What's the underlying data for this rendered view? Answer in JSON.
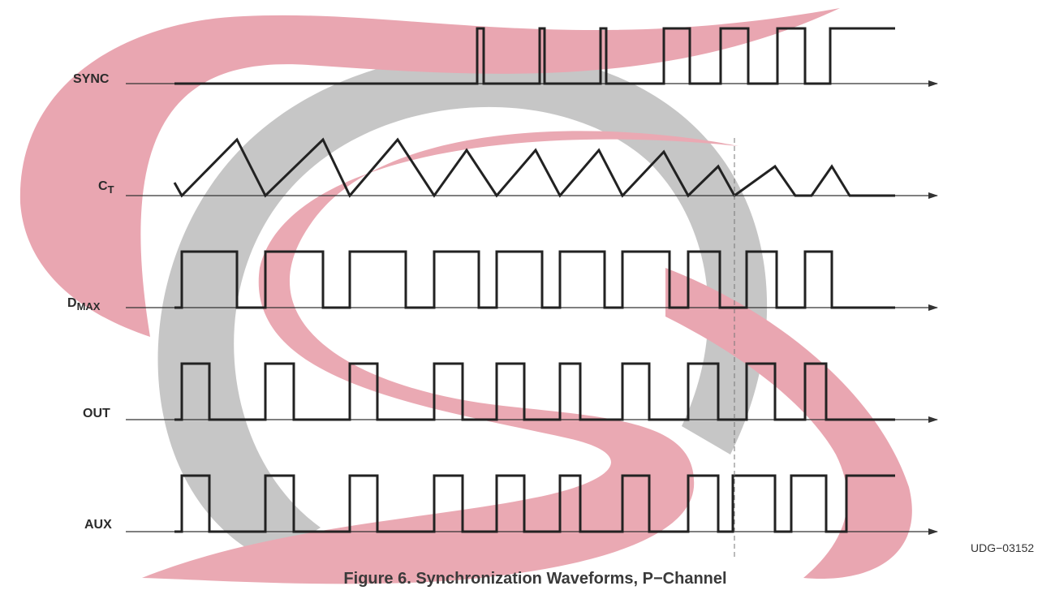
{
  "signals": [
    {
      "id": "sync",
      "label": "SYNC",
      "sub": ""
    },
    {
      "id": "ct",
      "label": "C",
      "sub": "T"
    },
    {
      "id": "dmax",
      "label": "D",
      "sub": "MAX"
    },
    {
      "id": "out",
      "label": "OUT",
      "sub": ""
    },
    {
      "id": "aux",
      "label": "AUX",
      "sub": ""
    }
  ],
  "reference": "UDG−03152",
  "caption": "Figure 6. Synchronization Waveforms, P−Channel",
  "colors": {
    "trace": "#222222",
    "axis": "#333333",
    "logo_red": "#e8a6b0",
    "logo_gray": "#c4c4c4"
  }
}
